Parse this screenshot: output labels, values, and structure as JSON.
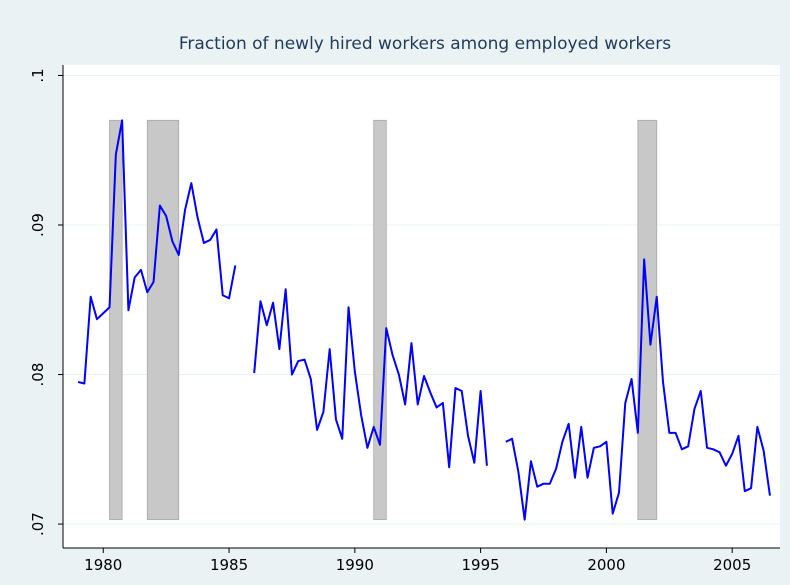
{
  "chart_data": {
    "type": "line",
    "title": "Fraction of newly hired workers among employed workers",
    "color": "#0000ff",
    "grid": true,
    "xlim": [
      1978.4,
      2006.9
    ],
    "ylim": [
      0.0684,
      0.1007
    ],
    "xticks": [
      1980,
      1985,
      1990,
      1995,
      2000,
      2005
    ],
    "yticks": [
      {
        "value": 0.07,
        "label": ".07"
      },
      {
        "value": 0.08,
        "label": ".08"
      },
      {
        "value": 0.09,
        "label": ".09"
      },
      {
        "value": 0.1,
        "label": ".1"
      }
    ],
    "recessions": [
      {
        "start": 1980.25,
        "end": 1980.75
      },
      {
        "start": 1981.75,
        "end": 1983.0
      },
      {
        "start": 1990.75,
        "end": 1991.25
      },
      {
        "start": 2001.25,
        "end": 2002.0
      }
    ],
    "recession_color": "#c8c8c8",
    "shade_range": [
      0.0703,
      0.097
    ],
    "x": [
      1979.0,
      1979.25,
      1979.5,
      1979.75,
      1980.0,
      1980.25,
      1980.5,
      1980.75,
      1981.0,
      1981.25,
      1981.5,
      1981.75,
      1982.0,
      1982.25,
      1982.5,
      1982.75,
      1983.0,
      1983.25,
      1983.5,
      1983.75,
      1984.0,
      1984.25,
      1984.5,
      1984.75,
      1985.0,
      1985.25,
      1985.5,
      1985.75,
      1986.0,
      1986.25,
      1986.5,
      1986.75,
      1987.0,
      1987.25,
      1987.5,
      1987.75,
      1988.0,
      1988.25,
      1988.5,
      1988.75,
      1989.0,
      1989.25,
      1989.5,
      1989.75,
      1990.0,
      1990.25,
      1990.5,
      1990.75,
      1991.0,
      1991.25,
      1991.5,
      1991.75,
      1992.0,
      1992.25,
      1992.5,
      1992.75,
      1993.0,
      1993.25,
      1993.5,
      1993.75,
      1994.0,
      1994.25,
      1994.5,
      1994.75,
      1995.0,
      1995.25,
      1995.5,
      1995.75,
      1996.0,
      1996.25,
      1996.5,
      1996.75,
      1997.0,
      1997.25,
      1997.5,
      1997.75,
      1998.0,
      1998.25,
      1998.5,
      1998.75,
      1999.0,
      1999.25,
      1999.5,
      1999.75,
      2000.0,
      2000.25,
      2000.5,
      2000.75,
      2001.0,
      2001.25,
      2001.5,
      2001.75,
      2002.0,
      2002.25,
      2002.5,
      2002.75,
      2003.0,
      2003.25,
      2003.5,
      2003.75,
      2004.0,
      2004.25,
      2004.5,
      2004.75,
      2005.0,
      2005.25,
      2005.5,
      2005.75,
      2006.0,
      2006.25,
      2006.5
    ],
    "values": [
      0.0795,
      0.0794,
      0.0852,
      0.0837,
      0.0841,
      0.0845,
      0.0947,
      0.097,
      0.0843,
      0.0865,
      0.087,
      0.0855,
      0.0862,
      0.0913,
      0.0906,
      0.0889,
      0.088,
      0.091,
      0.0928,
      0.0905,
      0.0888,
      0.089,
      0.0897,
      0.0853,
      0.0851,
      0.0873,
      null,
      null,
      0.0801,
      0.0849,
      0.0833,
      0.0848,
      0.0817,
      0.0857,
      0.08,
      0.0809,
      0.081,
      0.0797,
      0.0763,
      0.0775,
      0.0817,
      0.077,
      0.0757,
      0.0845,
      0.0802,
      0.0773,
      0.0751,
      0.0765,
      0.0753,
      0.0831,
      0.0813,
      0.08,
      0.078,
      0.0821,
      0.078,
      0.0799,
      0.0788,
      0.0778,
      0.0781,
      0.0738,
      0.0791,
      0.0789,
      0.0759,
      0.0741,
      0.0789,
      0.0739,
      null,
      null,
      0.0755,
      0.0757,
      0.0735,
      0.0703,
      0.0742,
      0.0725,
      0.0727,
      0.0727,
      0.0737,
      0.0755,
      0.0767,
      0.0731,
      0.0765,
      0.0731,
      0.0751,
      0.0752,
      0.0755,
      0.0707,
      0.0721,
      0.0781,
      0.0797,
      0.0761,
      0.0877,
      0.082,
      0.0852,
      0.0795,
      0.0761,
      0.0761,
      0.075,
      0.0752,
      0.0777,
      0.0789,
      0.0751,
      0.075,
      0.0748,
      0.0739,
      0.0747,
      0.0759,
      0.0722,
      0.0724,
      0.0765,
      0.0749,
      0.0719
    ]
  }
}
